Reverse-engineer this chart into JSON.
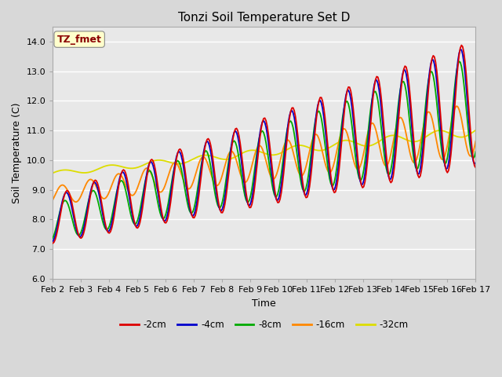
{
  "title": "Tonzi Soil Temperature Set D",
  "xlabel": "Time",
  "ylabel": "Soil Temperature (C)",
  "ylim": [
    6.0,
    14.5
  ],
  "yticks": [
    6.0,
    7.0,
    8.0,
    9.0,
    10.0,
    11.0,
    12.0,
    13.0,
    14.0
  ],
  "xtick_labels": [
    "Feb 2",
    "Feb 3",
    "Feb 4",
    "Feb 5",
    "Feb 6",
    "Feb 7",
    "Feb 8",
    "Feb 9",
    "Feb 10",
    "Feb 11",
    "Feb 12",
    "Feb 13",
    "Feb 14",
    "Feb 15",
    "Feb 16",
    "Feb 17"
  ],
  "series": [
    {
      "label": "-2cm",
      "color": "#dd0000"
    },
    {
      "label": "-4cm",
      "color": "#0000cc"
    },
    {
      "label": "-8cm",
      "color": "#00aa00"
    },
    {
      "label": "-16cm",
      "color": "#ff8800"
    },
    {
      "label": "-32cm",
      "color": "#dddd00"
    }
  ],
  "annotation_text": "TZ_fmet",
  "annotation_color": "#8b0000",
  "annotation_bg": "#ffffcc",
  "background_color": "#d8d8d8",
  "plot_bg": "#e8e8e8",
  "grid_color": "#ffffff",
  "title_fontsize": 11,
  "label_fontsize": 9,
  "tick_fontsize": 8
}
